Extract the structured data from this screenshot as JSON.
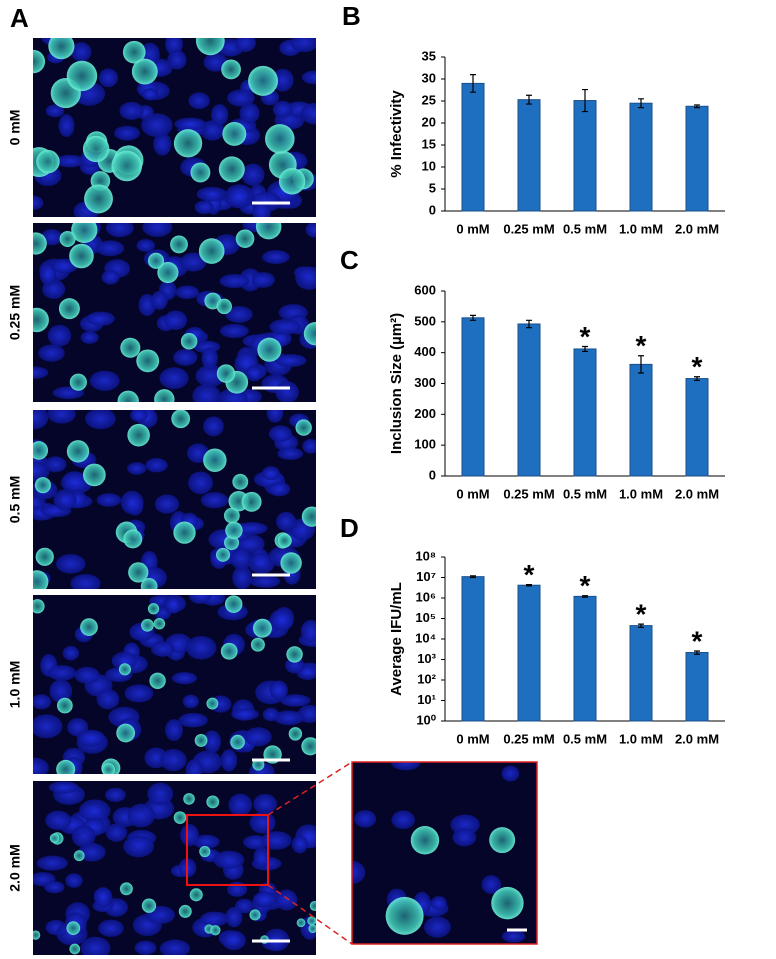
{
  "figure": {
    "panel_labels": [
      "A",
      "B",
      "C",
      "D"
    ],
    "image_labels": [
      "0 mM",
      "0.25 mM",
      "0.5 mM",
      "1.0 mM",
      "2.0 mM"
    ]
  },
  "chart_data": [
    {
      "type": "bar",
      "y_label": "% Infectivity",
      "categories": [
        "0 mM",
        "0.25 mM",
        "0.5 mM",
        "1.0 mM",
        "2.0 mM"
      ],
      "values": [
        29,
        25.3,
        25.1,
        24.5,
        23.8
      ],
      "errors": [
        2,
        1,
        2.5,
        1,
        0.3
      ],
      "color": "#1f6fc0",
      "ylim": [
        0,
        35
      ],
      "yticks": [
        0,
        5,
        10,
        15,
        20,
        25,
        30,
        35
      ]
    },
    {
      "type": "bar",
      "y_label": "Inclusion Size (µm²)",
      "categories": [
        "0 mM",
        "0.25 mM",
        "0.5 mM",
        "1.0 mM",
        "2.0 mM"
      ],
      "values": [
        513,
        493,
        412,
        362,
        316
      ],
      "errors": [
        8,
        12,
        8,
        28,
        6
      ],
      "color": "#1f6fc0",
      "annotations": [
        null,
        null,
        "*",
        "*",
        "*"
      ],
      "ylim": [
        0,
        600
      ],
      "yticks": [
        0,
        100,
        200,
        300,
        400,
        500,
        600
      ]
    },
    {
      "type": "bar",
      "y_label": "Average IFU/mL",
      "categories": [
        "0 mM",
        "0.25 mM",
        "0.5 mM",
        "1.0 mM",
        "2.0 mM"
      ],
      "values": [
        11000000,
        4200000,
        1200000,
        45000,
        2200
      ],
      "errors": [
        1000000,
        300000,
        100000,
        8000,
        400
      ],
      "color": "#1f6fc0",
      "annotations": [
        null,
        "*",
        "*",
        "*",
        "*"
      ],
      "log_scale": true,
      "ylim": [
        1,
        100000000
      ],
      "yticks": [
        {
          "value": 1,
          "label": "10⁰"
        },
        {
          "value": 10,
          "label": "10¹"
        },
        {
          "value": 100,
          "label": "10²"
        },
        {
          "value": 1000,
          "label": "10³"
        },
        {
          "value": 10000,
          "label": "10⁴"
        },
        {
          "value": 100000,
          "label": "10⁵"
        },
        {
          "value": 1000000,
          "label": "10⁶"
        },
        {
          "value": 10000000,
          "label": "10⁷"
        },
        {
          "value": 100000000,
          "label": "10⁸"
        }
      ]
    }
  ]
}
